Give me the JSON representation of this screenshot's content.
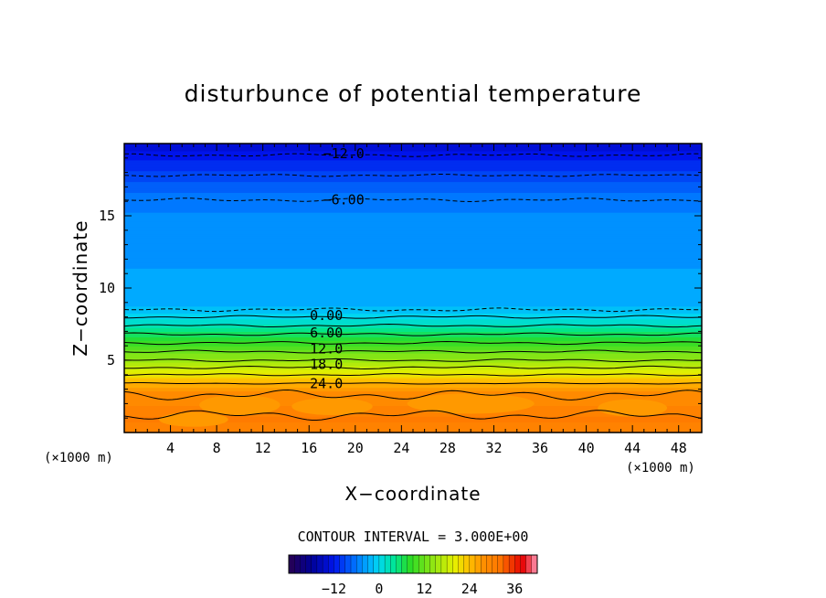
{
  "chart_data": {
    "type": "heatmap",
    "title": "disturbunce of potential temperature",
    "xlabel": "X−coordinate",
    "ylabel": "Z−coordinate",
    "x_unit": "(×1000 m)",
    "y_unit": "(×1000 m)",
    "xlim": [
      0,
      50
    ],
    "ylim": [
      0,
      20
    ],
    "x_ticks": [
      "4",
      "8",
      "12",
      "16",
      "20",
      "24",
      "28",
      "32",
      "36",
      "40",
      "44",
      "48"
    ],
    "y_ticks": [
      "5",
      "10",
      "15"
    ],
    "x_tick_values": [
      4,
      8,
      12,
      16,
      20,
      24,
      28,
      32,
      36,
      40,
      44,
      48
    ],
    "y_tick_values": [
      5,
      10,
      15
    ],
    "contour_interval_label": "CONTOUR INTERVAL = 3.000E+00",
    "contour_labels": [
      {
        "text": "−12.0",
        "x": 19.0,
        "z": 19.3
      },
      {
        "text": "−6.00",
        "x": 19.0,
        "z": 16.1
      },
      {
        "text": "0.00",
        "x": 17.5,
        "z": 8.1
      },
      {
        "text": "6.00",
        "x": 17.5,
        "z": 6.9
      },
      {
        "text": "12.0",
        "x": 17.5,
        "z": 5.8
      },
      {
        "text": "18.0",
        "x": 17.5,
        "z": 4.7
      },
      {
        "text": "24.0",
        "x": 17.5,
        "z": 3.4
      }
    ],
    "profile": [
      {
        "z": 0.0,
        "v": 30
      },
      {
        "z": 1.0,
        "v": 31
      },
      {
        "z": 2.0,
        "v": 29
      },
      {
        "z": 2.8,
        "v": 28
      },
      {
        "z": 3.2,
        "v": 26
      },
      {
        "z": 3.6,
        "v": 24
      },
      {
        "z": 4.0,
        "v": 21
      },
      {
        "z": 4.5,
        "v": 18
      },
      {
        "z": 5.0,
        "v": 15
      },
      {
        "z": 5.6,
        "v": 12
      },
      {
        "z": 6.2,
        "v": 9
      },
      {
        "z": 6.8,
        "v": 6
      },
      {
        "z": 7.4,
        "v": 3
      },
      {
        "z": 8.0,
        "v": 0
      },
      {
        "z": 8.5,
        "v": -2
      },
      {
        "z": 9.5,
        "v": -3
      },
      {
        "z": 12.0,
        "v": -4
      },
      {
        "z": 15.0,
        "v": -5
      },
      {
        "z": 16.2,
        "v": -6
      },
      {
        "z": 17.8,
        "v": -9
      },
      {
        "z": 19.2,
        "v": -12
      },
      {
        "z": 20.0,
        "v": -14
      }
    ],
    "colorbar": {
      "min": -24,
      "max": 42,
      "ticks": [
        "−12",
        "0",
        "12",
        "24",
        "36"
      ],
      "tick_values": [
        -12,
        0,
        12,
        24,
        36
      ]
    },
    "legend": "none",
    "grid": false
  }
}
